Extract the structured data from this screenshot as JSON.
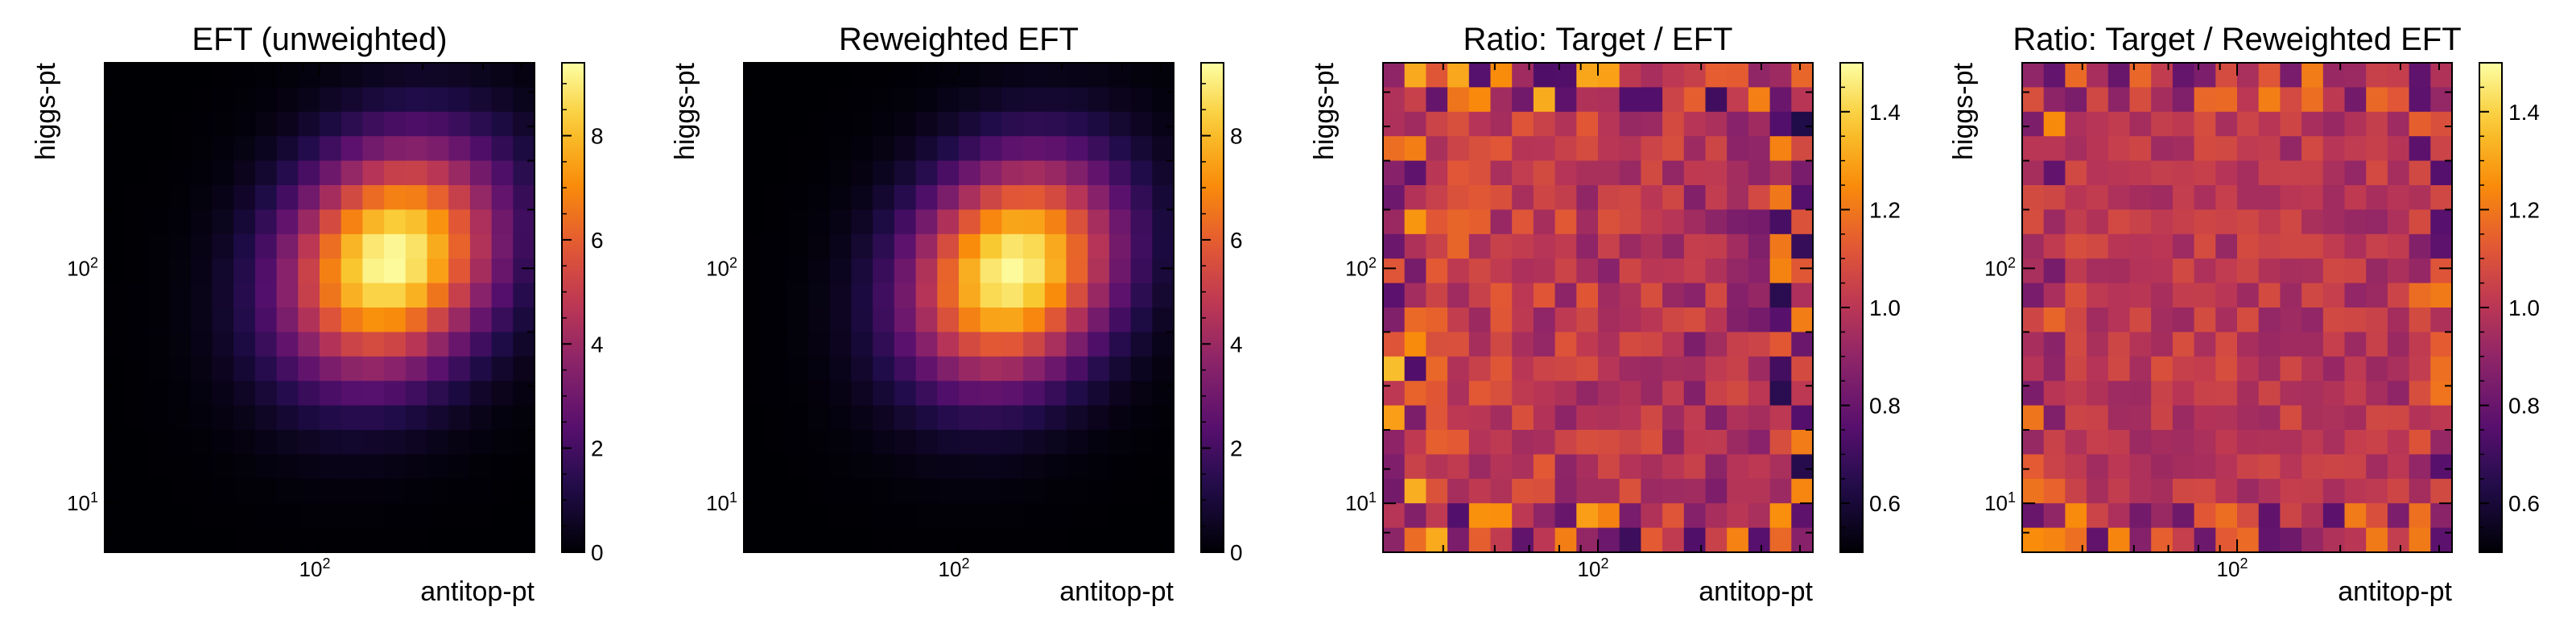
{
  "chart_data": [
    {
      "type": "heatmap",
      "title": "EFT (unweighted)",
      "xlabel": "antitop-pt",
      "ylabel": "higgs-pt",
      "x_scale": "log",
      "y_scale": "log",
      "x_tick_labels": [
        "10",
        "2"
      ],
      "y_tick_labels": [
        {
          "base": "10",
          "exp": "1"
        },
        {
          "base": "10",
          "exp": "2"
        }
      ],
      "colorbar": {
        "min": 0,
        "max": 9.4,
        "ticks": [
          "0",
          "2",
          "4",
          "6",
          "8"
        ],
        "colormap": "inferno"
      },
      "grid": {
        "rows": 20,
        "cols": 20,
        "peak_col": 12.8,
        "peak_row": 7.6,
        "spread_col": 3.4,
        "spread_row": 3.2,
        "peak_value": 9.4,
        "corr": -0.2
      }
    },
    {
      "type": "heatmap",
      "title": "Reweighted EFT",
      "xlabel": "antitop-pt",
      "ylabel": "higgs-pt",
      "x_scale": "log",
      "y_scale": "log",
      "x_tick_labels": [
        "10",
        "2"
      ],
      "y_tick_labels": [
        {
          "base": "10",
          "exp": "1"
        },
        {
          "base": "10",
          "exp": "2"
        }
      ],
      "colorbar": {
        "min": 0,
        "max": 9.4,
        "ticks": [
          "0",
          "2",
          "4",
          "6",
          "8"
        ],
        "colormap": "inferno"
      },
      "grid": {
        "rows": 20,
        "cols": 20,
        "peak_col": 12.0,
        "peak_row": 8.0,
        "spread_col": 3.3,
        "spread_row": 3.1,
        "peak_value": 9.3,
        "corr": -0.2
      }
    },
    {
      "type": "heatmap",
      "title": "Ratio: Target / EFT",
      "xlabel": "antitop-pt",
      "ylabel": "higgs-pt",
      "x_scale": "log",
      "y_scale": "log",
      "x_tick_labels": [
        "10",
        "2"
      ],
      "y_tick_labels": [
        {
          "base": "10",
          "exp": "1"
        },
        {
          "base": "10",
          "exp": "2"
        }
      ],
      "colorbar": {
        "min": 0.5,
        "max": 1.5,
        "ticks": [
          "0.6",
          "0.8",
          "1.0",
          "1.2",
          "1.4"
        ],
        "colormap": "inferno"
      },
      "grid": {
        "rows": 20,
        "cols": 20,
        "seed": 7,
        "base": 1.0,
        "noise": 0.12,
        "gradient": 0.12
      }
    },
    {
      "type": "heatmap",
      "title": "Ratio: Target / Reweighted EFT",
      "xlabel": "antitop-pt",
      "ylabel": "higgs-pt",
      "x_scale": "log",
      "y_scale": "log",
      "x_tick_labels": [
        "10",
        "2"
      ],
      "y_tick_labels": [
        {
          "base": "10",
          "exp": "1"
        },
        {
          "base": "10",
          "exp": "2"
        }
      ],
      "colorbar": {
        "min": 0.5,
        "max": 1.5,
        "ticks": [
          "0.6",
          "0.8",
          "1.0",
          "1.2",
          "1.4"
        ],
        "colormap": "inferno"
      },
      "grid": {
        "rows": 20,
        "cols": 20,
        "seed": 19,
        "base": 1.0,
        "noise": 0.09,
        "gradient": 0.04
      }
    }
  ]
}
